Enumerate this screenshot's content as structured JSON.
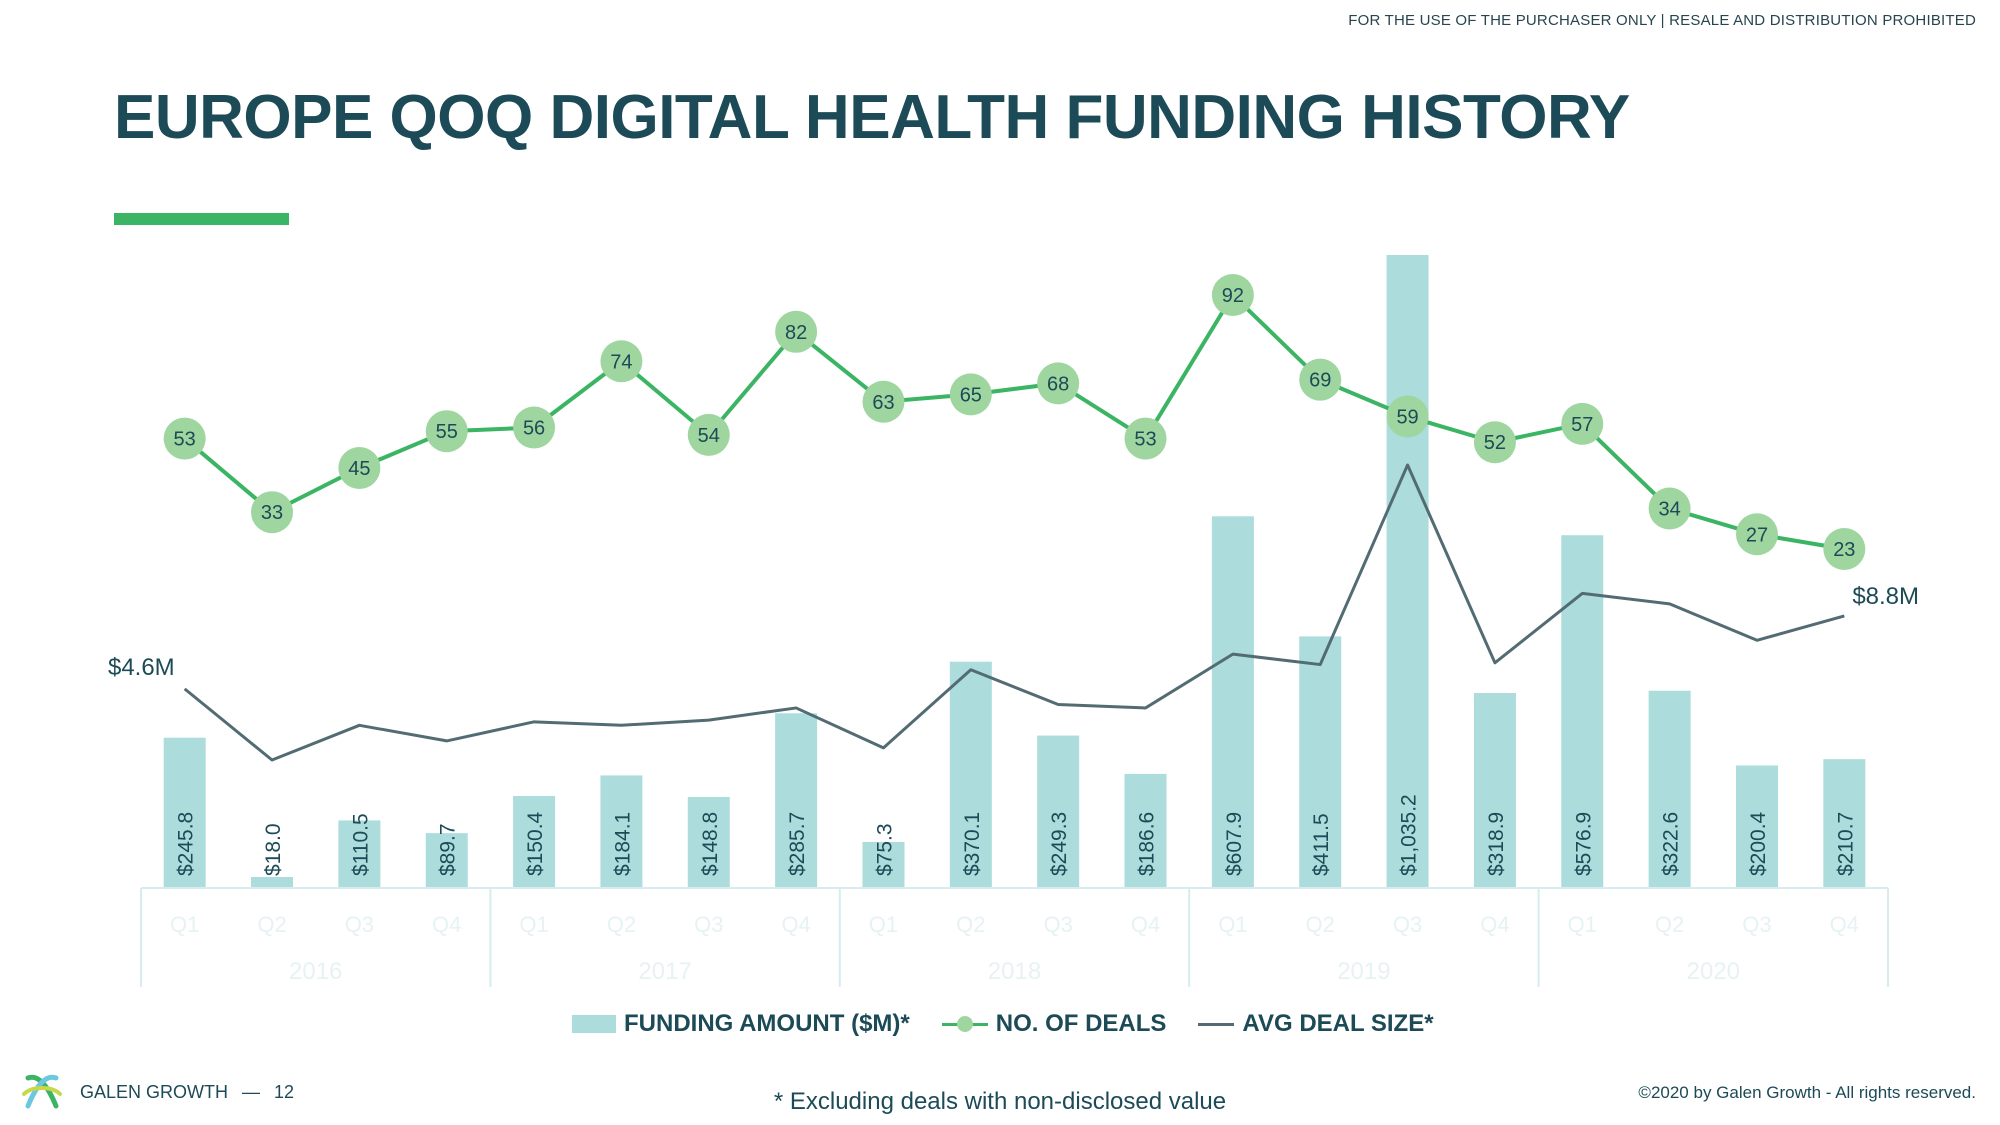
{
  "header": {
    "notice": "FOR THE USE OF THE PURCHASER ONLY | RESALE AND DISTRIBUTION PROHIBITED",
    "title": "EUROPE QOQ DIGITAL HEALTH FUNDING HISTORY"
  },
  "colors": {
    "title": "#1c4a57",
    "accent_green": "#3bb463",
    "bar_fill": "#acdcdb",
    "deal_marker": "#9fd6a0",
    "avg_line": "#536b73",
    "axis_text": "#e6f2f3",
    "axis_line": "#d6ecee"
  },
  "chart_data": {
    "type": "bar",
    "categories": [
      "Q1",
      "Q2",
      "Q3",
      "Q4",
      "Q1",
      "Q2",
      "Q3",
      "Q4",
      "Q1",
      "Q2",
      "Q3",
      "Q4",
      "Q1",
      "Q2",
      "Q3",
      "Q4",
      "Q1",
      "Q2",
      "Q3",
      "Q4"
    ],
    "groups": [
      {
        "label": "2016",
        "count": 4
      },
      {
        "label": "2017",
        "count": 4
      },
      {
        "label": "2018",
        "count": 4
      },
      {
        "label": "2019",
        "count": 4
      },
      {
        "label": "2020",
        "count": 4
      }
    ],
    "series": [
      {
        "name": "FUNDING AMOUNT ($M)*",
        "type": "bar",
        "values": [
          245.8,
          18.0,
          110.5,
          89.7,
          150.4,
          184.1,
          148.8,
          285.7,
          75.3,
          370.1,
          249.3,
          186.6,
          607.9,
          411.5,
          1035.2,
          318.9,
          576.9,
          322.6,
          200.4,
          210.7
        ],
        "labels": [
          "$245.8",
          "$18.0",
          "$110.5",
          "$89.7",
          "$150.4",
          "$184.1",
          "$148.8",
          "$285.7",
          "$75.3",
          "$370.1",
          "$249.3",
          "$186.6",
          "$607.9",
          "$411.5",
          "$1,035.2",
          "$318.9",
          "$576.9",
          "$322.6",
          "$200.4",
          "$210.7"
        ]
      },
      {
        "name": "NO. OF DEALS",
        "type": "line",
        "values": [
          53,
          33,
          45,
          55,
          56,
          74,
          54,
          82,
          63,
          65,
          68,
          53,
          92,
          69,
          59,
          52,
          57,
          34,
          27,
          23
        ]
      },
      {
        "name": "AVG DEAL SIZE*",
        "type": "line",
        "values": [
          4.6,
          0.5,
          2.5,
          1.6,
          2.7,
          2.5,
          2.8,
          3.5,
          1.2,
          5.7,
          3.7,
          3.5,
          6.6,
          6.0,
          17.5,
          6.1,
          10.1,
          9.5,
          7.4,
          8.8
        ],
        "start_label": "$4.6M",
        "end_label": "$8.8M"
      }
    ],
    "title": "EUROPE QOQ DIGITAL HEALTH FUNDING HISTORY",
    "xlabel": "",
    "ylabel": "",
    "ylim": [
      0,
      1035.2
    ],
    "grid": false,
    "legend": "bottom-center"
  },
  "legend": {
    "funding": "FUNDING AMOUNT ($M)*",
    "deals": "NO. OF DEALS",
    "avg": "AVG DEAL SIZE*"
  },
  "footer": {
    "brand": "GALEN GROWTH",
    "separator": "—",
    "page_number": "12",
    "footnote": "* Excluding deals with non-disclosed value",
    "copyright": "©2020 by Galen Growth  - All rights reserved."
  }
}
